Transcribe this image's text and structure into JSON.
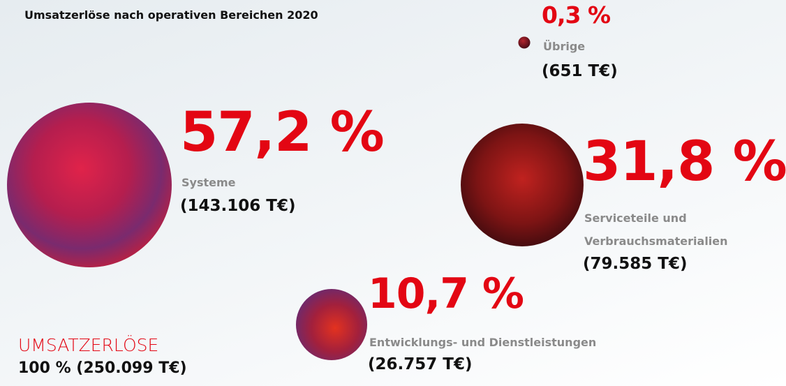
{
  "chart_data": {
    "type": "bubble",
    "title": "Umsatzerlöse nach operativen Bereichen 2020",
    "categories": [
      "Systeme",
      "Serviceteile und Verbrauchsmaterialien",
      "Entwicklungs- und Dienstleistungen",
      "Übrige"
    ],
    "values": [
      57.2,
      31.8,
      10.7,
      0.3
    ],
    "value_labels": [
      "57,2 %",
      "31,8 %",
      "10,7 %",
      "0,3 %"
    ],
    "amounts": [
      143106,
      79585,
      26757,
      651
    ],
    "amount_labels": [
      "(143.106 T€)",
      "(79.585 T€)",
      "(26.757 T€)",
      "(651 T€)"
    ],
    "color": "#e30613",
    "total": {
      "name": "UMSATZERLÖSE",
      "value": 100,
      "amount": 250099,
      "label": "100 % (250.099 T€)"
    }
  }
}
